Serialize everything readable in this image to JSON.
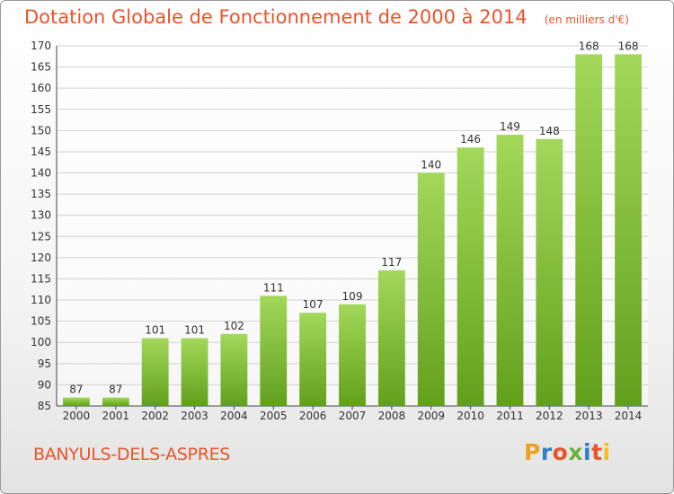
{
  "header": {
    "title": "Dotation Globale de Fonctionnement de 2000 à 2014",
    "unit": "(en milliers d'€)"
  },
  "footer": {
    "commune": "BANYULS-DELS-ASPRES",
    "brand": "Proxiti",
    "brand_colors": [
      "#f0a020",
      "#2f7fc8",
      "#e8552a",
      "#6bb23a",
      "#2f7fc8",
      "#e8552a",
      "#f0c020"
    ]
  },
  "colors": {
    "bar_light": "#a3d85a",
    "bar_dark": "#62a01c",
    "title": "#e8552a"
  },
  "chart_data": {
    "type": "bar",
    "categories": [
      "2000",
      "2001",
      "2002",
      "2003",
      "2004",
      "2005",
      "2006",
      "2007",
      "2008",
      "2009",
      "2010",
      "2011",
      "2012",
      "2013",
      "2014"
    ],
    "values": [
      87,
      87,
      101,
      101,
      102,
      111,
      107,
      109,
      117,
      140,
      146,
      149,
      148,
      168,
      168
    ],
    "title": "Dotation Globale de Fonctionnement de 2000 à 2014",
    "subtitle": "(en milliers d'€)",
    "xlabel": "",
    "ylabel": "",
    "ylim": [
      85,
      170
    ],
    "yticks": [
      85,
      90,
      95,
      100,
      105,
      110,
      115,
      120,
      125,
      130,
      135,
      140,
      145,
      150,
      155,
      160,
      165,
      170
    ],
    "grid": true,
    "data_labels": true
  }
}
